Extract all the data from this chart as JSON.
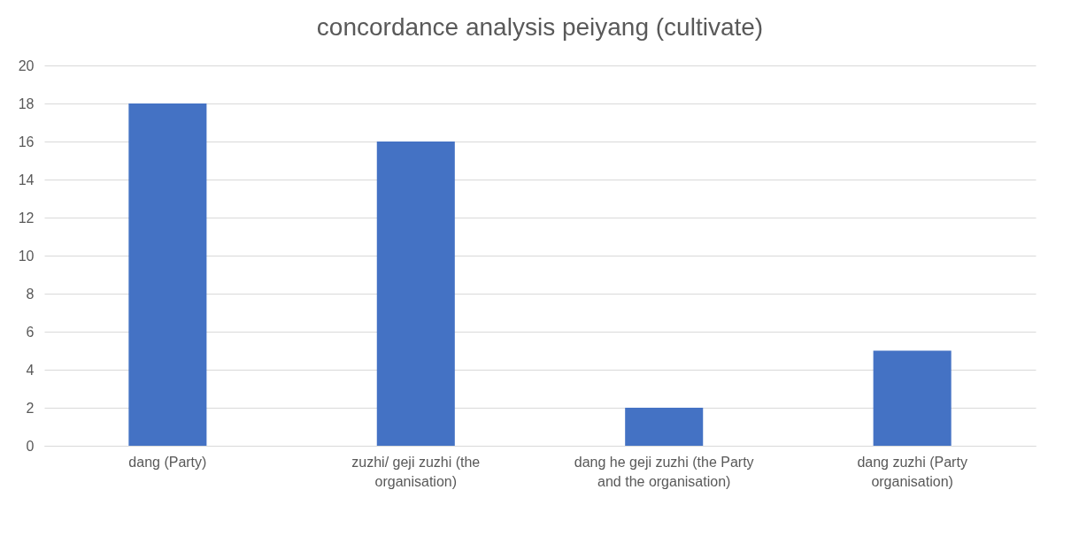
{
  "chart_data": {
    "type": "bar",
    "title": "concordance analysis peiyang (cultivate)",
    "categories": [
      "dang (Party)",
      "zuzhi/ geji zuzhi (the organisation)",
      "dang he geji zuzhi (the Party and the organisation)",
      "dang zuzhi (Party organisation)"
    ],
    "values": [
      18,
      16,
      2,
      5
    ],
    "color": "#4472c4",
    "ylim": [
      0,
      20
    ],
    "yticks": [
      0,
      2,
      4,
      6,
      8,
      10,
      12,
      14,
      16,
      18,
      20
    ],
    "grid": "y"
  }
}
